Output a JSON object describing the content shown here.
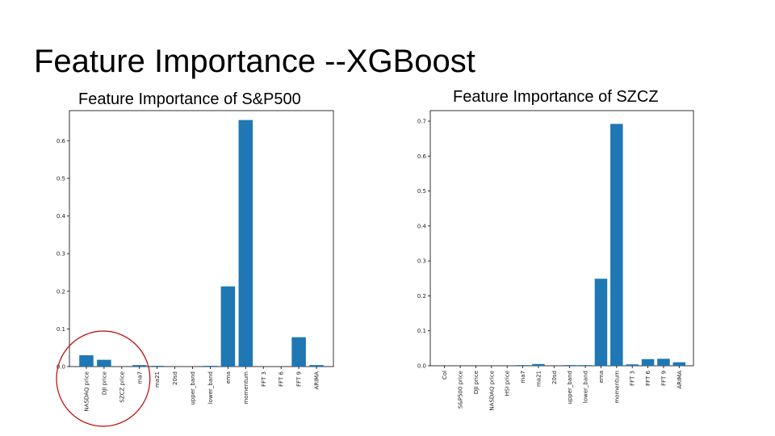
{
  "slide": {
    "title": "Feature Importance --XGBoost"
  },
  "colors": {
    "bar": "#1f77b4",
    "axis": "#000000",
    "highlight": "#c00000"
  },
  "chart_data": [
    {
      "type": "bar",
      "title": "Feature Importance of S&P500",
      "xlabel": "",
      "ylabel": "",
      "ylim": [
        0,
        0.68
      ],
      "yticks": [
        0.0,
        0.1,
        0.2,
        0.3,
        0.4,
        0.5,
        0.6
      ],
      "ytick_labels": [
        "0.0",
        "0.1",
        "0.2",
        "0.3",
        "0.4",
        "0.5",
        "0.6"
      ],
      "categories": [
        "NASDAQ price",
        "DJI price",
        "SZCZ price",
        "ma7",
        "ma21",
        "20sd",
        "upper_band",
        "lower_band",
        "ema",
        "momentum",
        "FFT 3",
        "FFT 6",
        "FFT 9",
        "ARIMA"
      ],
      "values": [
        0.03,
        0.018,
        0.0,
        0.004,
        0.002,
        0.0,
        0.0,
        0.002,
        0.213,
        0.655,
        0.0,
        0.0,
        0.078,
        0.004
      ],
      "grid": false,
      "annotation": "red circle around NASDAQ price, DJI price, SZCZ price"
    },
    {
      "type": "bar",
      "title": "Feature Importance of SZCZ",
      "xlabel": "",
      "ylabel": "",
      "ylim": [
        0,
        0.73
      ],
      "yticks": [
        0.0,
        0.1,
        0.2,
        0.3,
        0.4,
        0.5,
        0.6,
        0.7
      ],
      "ytick_labels": [
        "0.0",
        "0.1",
        "0.2",
        "0.3",
        "0.4",
        "0.5",
        "0.6",
        "0.7"
      ],
      "categories": [
        "Col",
        "S&P500 price",
        "DJI price",
        "NASDAQ price",
        "HSI price",
        "ma7",
        "ma21",
        "20sd",
        "upper_band",
        "lower_band",
        "ema",
        "momentum",
        "FFT 3",
        "FFT 6",
        "FFT 9",
        "ARIMA"
      ],
      "values": [
        0.0,
        0.0,
        0.0,
        0.0,
        0.0,
        0.002,
        0.005,
        0.0,
        0.002,
        0.002,
        0.249,
        0.692,
        0.004,
        0.019,
        0.02,
        0.01
      ],
      "grid": false
    }
  ]
}
